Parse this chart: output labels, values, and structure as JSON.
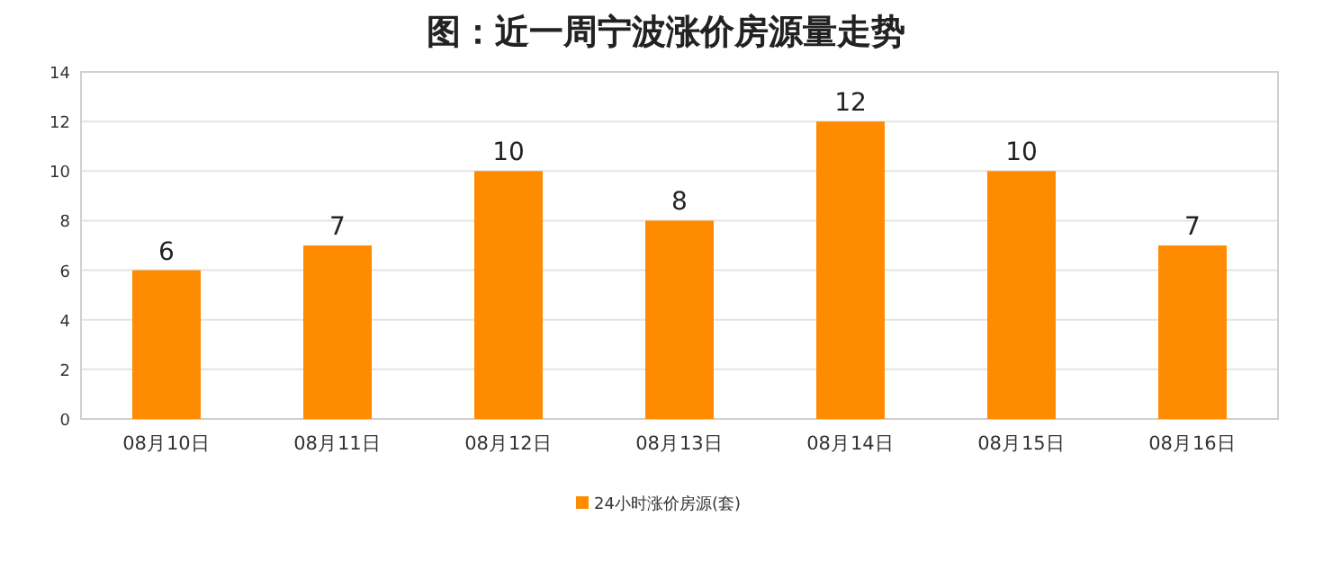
{
  "chart_data": {
    "type": "bar",
    "title": "图：近一周宁波涨价房源量走势",
    "categories": [
      "08月10日",
      "08月11日",
      "08月12日",
      "08月13日",
      "08月14日",
      "08月15日",
      "08月16日"
    ],
    "series": [
      {
        "name": "24小时涨价房源(套)",
        "color": "#ff8c00",
        "values": [
          6,
          7,
          10,
          8,
          12,
          10,
          7
        ]
      }
    ],
    "ylim": [
      0,
      14
    ],
    "yticks": [
      0,
      2,
      4,
      6,
      8,
      10,
      12,
      14
    ],
    "grid": "y",
    "legend": "bottom",
    "data_labels": true
  }
}
